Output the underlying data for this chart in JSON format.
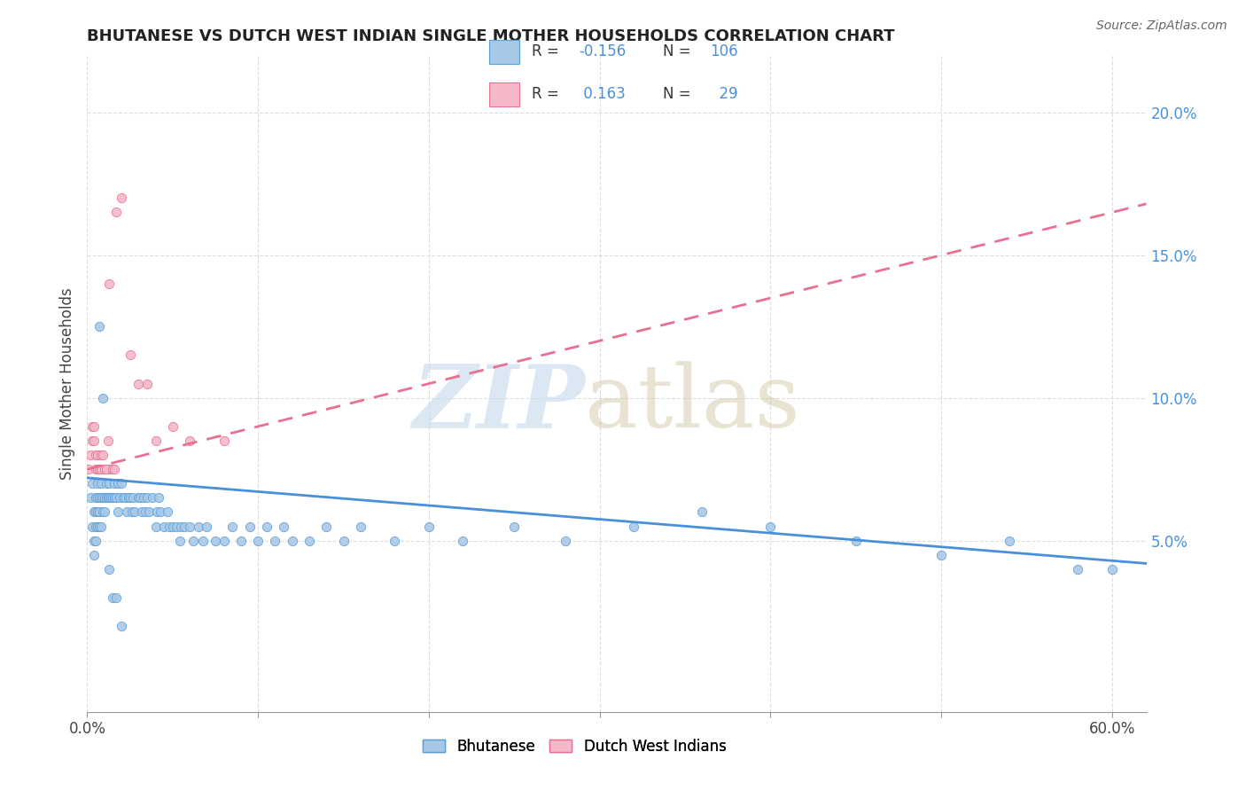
{
  "title": "BHUTANESE VS DUTCH WEST INDIAN SINGLE MOTHER HOUSEHOLDS CORRELATION CHART",
  "source": "Source: ZipAtlas.com",
  "ylabel": "Single Mother Households",
  "ytick_labels": [
    "5.0%",
    "10.0%",
    "15.0%",
    "20.0%"
  ],
  "ytick_values": [
    0.05,
    0.1,
    0.15,
    0.2
  ],
  "xtick_labels": [
    "0.0%",
    "",
    "",
    "",
    "",
    "",
    "60.0%"
  ],
  "xtick_values": [
    0.0,
    0.1,
    0.2,
    0.3,
    0.4,
    0.5,
    0.6
  ],
  "xlim": [
    0.0,
    0.62
  ],
  "ylim": [
    -0.01,
    0.22
  ],
  "bhutanese_R": -0.156,
  "bhutanese_N": 106,
  "bhutanese_color": "#a8c8e8",
  "bhutanese_edge_color": "#5a9fd4",
  "bhutanese_line_color": "#4a90d9",
  "dutch_R": 0.163,
  "dutch_N": 29,
  "dutch_color": "#f4b8c8",
  "dutch_edge_color": "#e87090",
  "dutch_line_color": "#e87090",
  "blue_text_color": "#4a90d9",
  "pink_text_color": "#e87090",
  "grid_color": "#dddddd",
  "watermark_zip_color": "#c5d8ed",
  "watermark_atlas_color": "#d4c8a8",
  "bhutanese_x": [
    0.002,
    0.003,
    0.003,
    0.004,
    0.004,
    0.004,
    0.005,
    0.005,
    0.005,
    0.005,
    0.006,
    0.006,
    0.006,
    0.006,
    0.007,
    0.007,
    0.007,
    0.008,
    0.008,
    0.008,
    0.009,
    0.009,
    0.01,
    0.01,
    0.011,
    0.011,
    0.012,
    0.012,
    0.013,
    0.013,
    0.014,
    0.015,
    0.015,
    0.016,
    0.016,
    0.017,
    0.018,
    0.018,
    0.019,
    0.02,
    0.021,
    0.022,
    0.023,
    0.024,
    0.025,
    0.026,
    0.027,
    0.028,
    0.03,
    0.031,
    0.032,
    0.033,
    0.034,
    0.035,
    0.036,
    0.038,
    0.04,
    0.041,
    0.042,
    0.043,
    0.045,
    0.047,
    0.048,
    0.05,
    0.052,
    0.054,
    0.055,
    0.057,
    0.06,
    0.062,
    0.065,
    0.068,
    0.07,
    0.075,
    0.08,
    0.085,
    0.09,
    0.095,
    0.1,
    0.105,
    0.11,
    0.115,
    0.12,
    0.13,
    0.14,
    0.15,
    0.16,
    0.18,
    0.2,
    0.22,
    0.25,
    0.28,
    0.32,
    0.36,
    0.4,
    0.45,
    0.5,
    0.54,
    0.58,
    0.6,
    0.007,
    0.009,
    0.013,
    0.015,
    0.017,
    0.02
  ],
  "bhutanese_y": [
    0.065,
    0.07,
    0.055,
    0.06,
    0.05,
    0.045,
    0.065,
    0.06,
    0.055,
    0.05,
    0.07,
    0.065,
    0.06,
    0.055,
    0.065,
    0.06,
    0.055,
    0.07,
    0.065,
    0.055,
    0.065,
    0.06,
    0.065,
    0.06,
    0.07,
    0.065,
    0.075,
    0.065,
    0.07,
    0.065,
    0.065,
    0.075,
    0.065,
    0.07,
    0.065,
    0.065,
    0.07,
    0.06,
    0.065,
    0.07,
    0.065,
    0.065,
    0.06,
    0.065,
    0.065,
    0.06,
    0.065,
    0.06,
    0.065,
    0.065,
    0.06,
    0.065,
    0.06,
    0.065,
    0.06,
    0.065,
    0.055,
    0.06,
    0.065,
    0.06,
    0.055,
    0.06,
    0.055,
    0.055,
    0.055,
    0.05,
    0.055,
    0.055,
    0.055,
    0.05,
    0.055,
    0.05,
    0.055,
    0.05,
    0.05,
    0.055,
    0.05,
    0.055,
    0.05,
    0.055,
    0.05,
    0.055,
    0.05,
    0.05,
    0.055,
    0.05,
    0.055,
    0.05,
    0.055,
    0.05,
    0.055,
    0.05,
    0.055,
    0.06,
    0.055,
    0.05,
    0.045,
    0.05,
    0.04,
    0.04,
    0.125,
    0.1,
    0.04,
    0.03,
    0.03,
    0.02
  ],
  "dutch_x": [
    0.001,
    0.002,
    0.003,
    0.003,
    0.004,
    0.004,
    0.005,
    0.005,
    0.006,
    0.006,
    0.007,
    0.008,
    0.008,
    0.009,
    0.01,
    0.011,
    0.012,
    0.013,
    0.015,
    0.016,
    0.017,
    0.02,
    0.025,
    0.03,
    0.035,
    0.04,
    0.05,
    0.06,
    0.08
  ],
  "dutch_y": [
    0.075,
    0.08,
    0.085,
    0.09,
    0.085,
    0.09,
    0.08,
    0.075,
    0.08,
    0.075,
    0.075,
    0.08,
    0.075,
    0.08,
    0.075,
    0.075,
    0.085,
    0.14,
    0.075,
    0.075,
    0.165,
    0.17,
    0.115,
    0.105,
    0.105,
    0.085,
    0.09,
    0.085,
    0.085
  ],
  "bhutan_trendline_x0": 0.0,
  "bhutan_trendline_y0": 0.072,
  "bhutan_trendline_x1": 0.62,
  "bhutan_trendline_y1": 0.042,
  "dutch_trendline_x0": 0.0,
  "dutch_trendline_y0": 0.075,
  "dutch_trendline_x1": 0.62,
  "dutch_trendline_y1": 0.168
}
